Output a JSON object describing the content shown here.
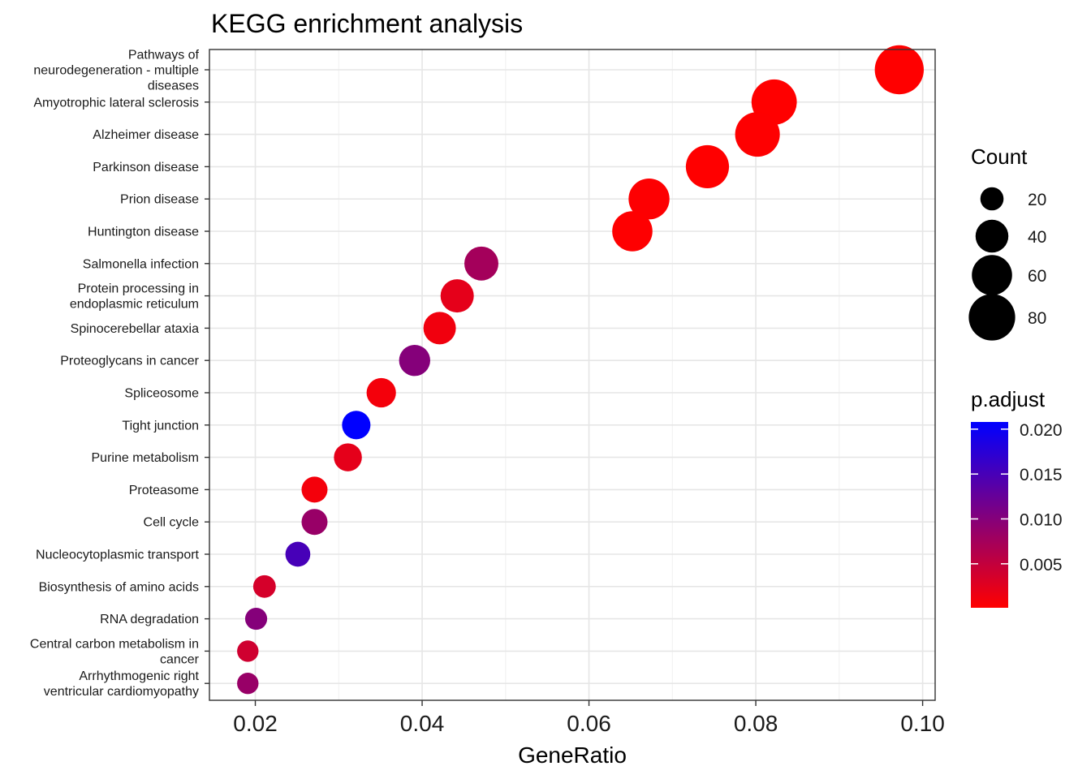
{
  "chart_data": {
    "type": "scatter",
    "title": "KEGG enrichment analysis",
    "xlabel": "GeneRatio",
    "ylabel": "",
    "xlim": [
      0.0145,
      0.1015
    ],
    "x_ticks": [
      0.02,
      0.04,
      0.06,
      0.08,
      0.1
    ],
    "x_tick_labels": [
      "0.02",
      "0.04",
      "0.06",
      "0.08",
      "0.10"
    ],
    "grid": true,
    "colors": {
      "low": "#ff0000",
      "high": "#0000ff"
    },
    "categories": [
      [
        "Pathways of",
        "neurodegeneration - multiple",
        "diseases"
      ],
      [
        "Amyotrophic lateral sclerosis"
      ],
      [
        "Alzheimer disease"
      ],
      [
        "Parkinson disease"
      ],
      [
        "Prion disease"
      ],
      [
        "Huntington disease"
      ],
      [
        "Salmonella infection"
      ],
      [
        "Protein processing in",
        "endoplasmic reticulum"
      ],
      [
        "Spinocerebellar ataxia"
      ],
      [
        "Proteoglycans in cancer"
      ],
      [
        "Spliceosome"
      ],
      [
        "Tight junction"
      ],
      [
        "Purine metabolism"
      ],
      [
        "Proteasome"
      ],
      [
        "Cell cycle"
      ],
      [
        "Nucleocytoplasmic transport"
      ],
      [
        "Biosynthesis of amino acids"
      ],
      [
        "RNA degradation"
      ],
      [
        "Central carbon metabolism in",
        "cancer"
      ],
      [
        "Arrhythmogenic right",
        "ventricular cardiomyopathy"
      ]
    ],
    "points": [
      {
        "x": 0.0972,
        "count": 89,
        "p_adjust": 0.0001
      },
      {
        "x": 0.0822,
        "count": 76,
        "p_adjust": 0.0001
      },
      {
        "x": 0.0802,
        "count": 74,
        "p_adjust": 0.0002
      },
      {
        "x": 0.0742,
        "count": 69,
        "p_adjust": 0.0001
      },
      {
        "x": 0.0672,
        "count": 62,
        "p_adjust": 0.0003
      },
      {
        "x": 0.0652,
        "count": 60,
        "p_adjust": 0.0002
      },
      {
        "x": 0.0471,
        "count": 43,
        "p_adjust": 0.0075
      },
      {
        "x": 0.0442,
        "count": 41,
        "p_adjust": 0.0022
      },
      {
        "x": 0.0421,
        "count": 39,
        "p_adjust": 0.0012
      },
      {
        "x": 0.0391,
        "count": 36,
        "p_adjust": 0.01
      },
      {
        "x": 0.0351,
        "count": 32,
        "p_adjust": 0.001
      },
      {
        "x": 0.0321,
        "count": 30,
        "p_adjust": 0.0208
      },
      {
        "x": 0.0311,
        "count": 29,
        "p_adjust": 0.0022
      },
      {
        "x": 0.0271,
        "count": 25,
        "p_adjust": 0.001
      },
      {
        "x": 0.0271,
        "count": 25,
        "p_adjust": 0.0085
      },
      {
        "x": 0.0251,
        "count": 23,
        "p_adjust": 0.015
      },
      {
        "x": 0.0211,
        "count": 19,
        "p_adjust": 0.0035
      },
      {
        "x": 0.0201,
        "count": 18,
        "p_adjust": 0.01
      },
      {
        "x": 0.0191,
        "count": 17,
        "p_adjust": 0.004
      },
      {
        "x": 0.0191,
        "count": 17,
        "p_adjust": 0.0085
      }
    ],
    "size_legend": {
      "title": "Count",
      "values": [
        20,
        40,
        60,
        80
      ],
      "labels": [
        "20",
        "40",
        "60",
        "80"
      ]
    },
    "color_legend": {
      "title": "p.adjust",
      "range": [
        0.0001,
        0.0208
      ],
      "breaks": [
        0.005,
        0.01,
        0.015,
        0.02
      ],
      "labels": [
        "0.005",
        "0.010",
        "0.015",
        "0.020"
      ]
    }
  }
}
